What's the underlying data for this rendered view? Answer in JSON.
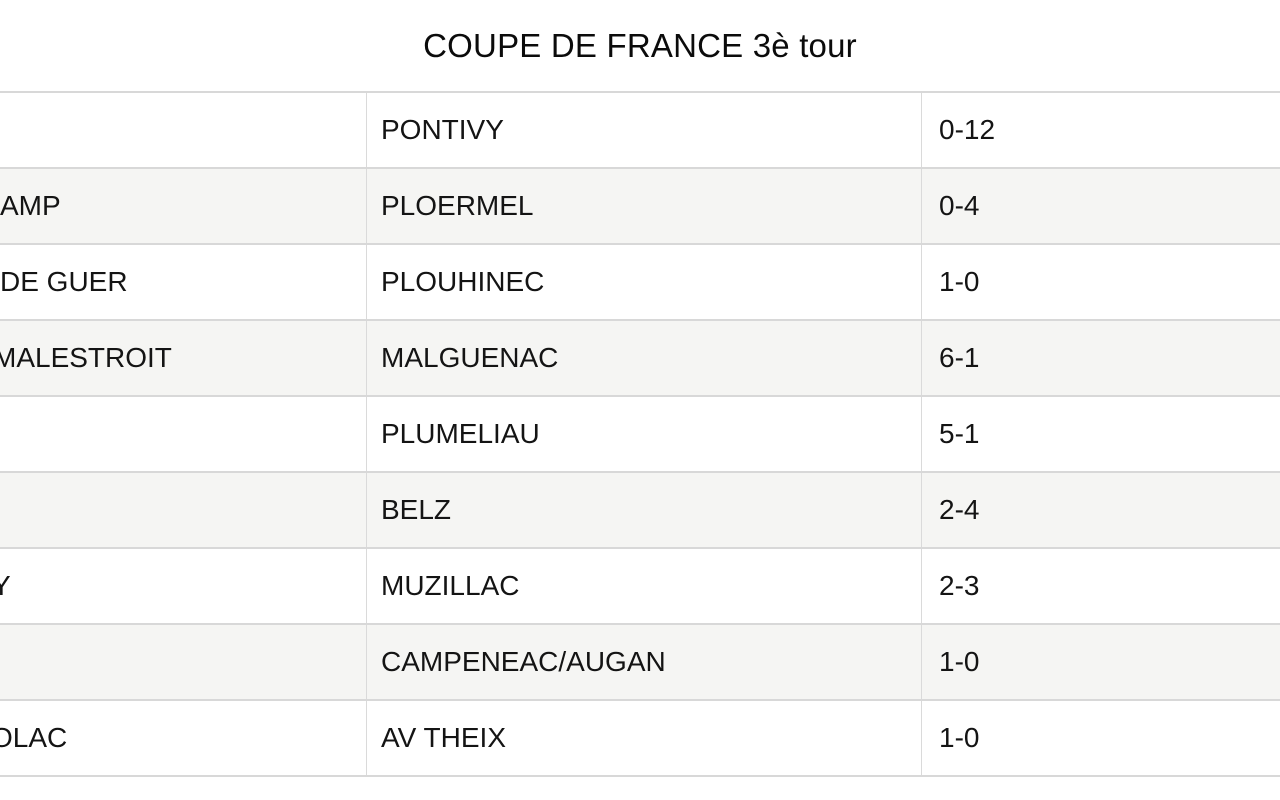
{
  "title": "COUPE DE FRANCE 3è tour",
  "table": {
    "description_columns": [
      "home_team_truncated_by_left_edge",
      "away_team",
      "score"
    ],
    "rows": [
      {
        "home": "",
        "away": "PONTIVY",
        "score": "0-12"
      },
      {
        "home": "AMP",
        "away": "PLOERMEL",
        "score": "0-4"
      },
      {
        "home": "DE GUER",
        "away": "PLOUHINEC",
        "score": "1-0"
      },
      {
        "home": "MALESTROIT",
        "away": "MALGUENAC",
        "score": "6-1"
      },
      {
        "home": "",
        "away": "PLUMELIAU",
        "score": "5-1"
      },
      {
        "home": "",
        "away": "BELZ",
        "score": "2-4"
      },
      {
        "home": "Y",
        "away": "MUZILLAC",
        "score": "2-3"
      },
      {
        "home": "",
        "away": "CAMPENEAC/AUGAN",
        "score": "1-0"
      },
      {
        "home": "OLAC",
        "away": "AV THEIX",
        "score": "1-0"
      }
    ]
  },
  "colors": {
    "background": "#ffffff",
    "stripe": "#f5f5f3",
    "border": "#d8d8d8",
    "text": "#141414"
  }
}
